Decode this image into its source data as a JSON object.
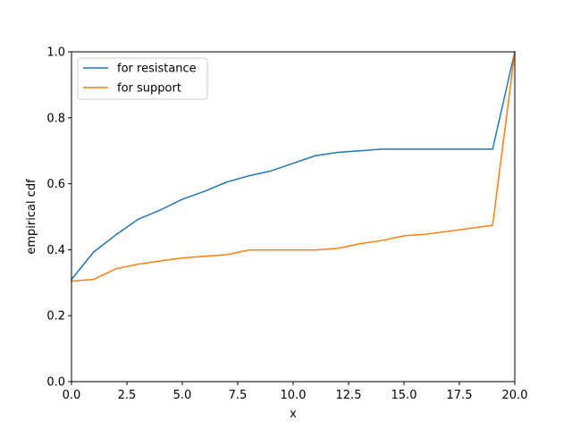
{
  "chart_data": {
    "type": "line",
    "title": "",
    "xlabel": "x",
    "ylabel": "empirical cdf",
    "xlim": [
      0,
      20
    ],
    "ylim": [
      0,
      1
    ],
    "xticks": [
      0,
      2.5,
      5,
      7.5,
      10,
      12.5,
      15,
      17.5,
      20
    ],
    "xtick_labels": [
      "0.0",
      "2.5",
      "5.0",
      "7.5",
      "10.0",
      "12.5",
      "15.0",
      "17.5",
      "20.0"
    ],
    "yticks": [
      0,
      0.2,
      0.4,
      0.6,
      0.8,
      1.0
    ],
    "ytick_labels": [
      "0.0",
      "0.2",
      "0.4",
      "0.6",
      "0.8",
      "1.0"
    ],
    "grid": false,
    "legend_position": "top-left",
    "x": [
      0,
      1,
      2,
      3,
      4,
      5,
      6,
      7,
      8,
      9,
      10,
      11,
      12,
      13,
      14,
      15,
      16,
      17,
      18,
      19,
      20
    ],
    "series": [
      {
        "name": "for resistance",
        "color": "#1f77b4",
        "values": [
          0.31,
          0.393,
          0.445,
          0.492,
          0.52,
          0.553,
          0.577,
          0.605,
          0.624,
          0.639,
          0.662,
          0.685,
          0.695,
          0.7,
          0.705,
          0.705,
          0.705,
          0.705,
          0.705,
          0.705,
          1.0
        ]
      },
      {
        "name": "for support",
        "color": "#ff7f0e",
        "values": [
          0.305,
          0.31,
          0.342,
          0.356,
          0.366,
          0.375,
          0.38,
          0.385,
          0.399,
          0.399,
          0.399,
          0.399,
          0.404,
          0.418,
          0.428,
          0.442,
          0.447,
          0.456,
          0.465,
          0.474,
          1.0
        ]
      }
    ]
  }
}
